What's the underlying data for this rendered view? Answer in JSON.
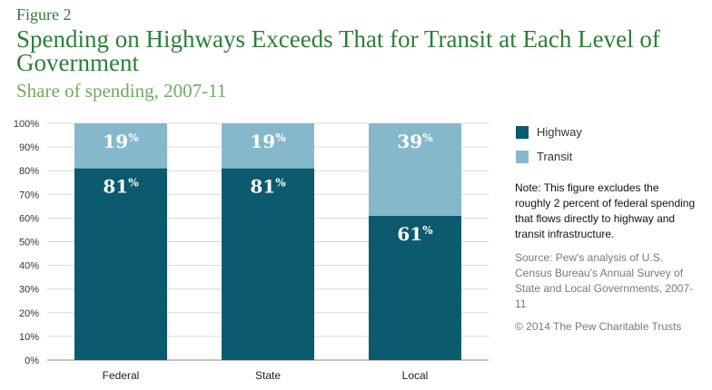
{
  "figure_label": "Figure 2",
  "title": "Spending on Highways Exceeds That for Transit at Each Level of Government",
  "subtitle": "Share of spending, 2007-11",
  "legend": [
    {
      "label": "Highway",
      "color": "#0c5a6e"
    },
    {
      "label": "Transit",
      "color": "#86b8cc"
    }
  ],
  "note": "Note: This figure excludes the roughly 2 percent of federal spending that flows directly to highway and transit infrastructure.",
  "source": "Source: Pew's analysis of U.S. Census Bureau's Annual Survey of State and Local Governments, 2007-11",
  "copyright": "© 2014 The Pew Charitable Trusts",
  "chart_data": {
    "type": "bar",
    "stacked": true,
    "categories": [
      "Federal",
      "State",
      "Local"
    ],
    "series": [
      {
        "name": "Highway",
        "values": [
          81,
          81,
          61
        ],
        "labels": [
          "81",
          "81",
          "61"
        ],
        "color": "#0c5a6e"
      },
      {
        "name": "Transit",
        "values": [
          19,
          19,
          39
        ],
        "labels": [
          "19",
          "19",
          "39"
        ],
        "color": "#86b8cc"
      }
    ],
    "label_suffix": "%",
    "yticks": [
      "0%",
      "10%",
      "20%",
      "30%",
      "40%",
      "50%",
      "60%",
      "70%",
      "80%",
      "90%",
      "100%"
    ],
    "ylim": [
      0,
      100
    ],
    "grid": true,
    "legend_position": "right"
  }
}
